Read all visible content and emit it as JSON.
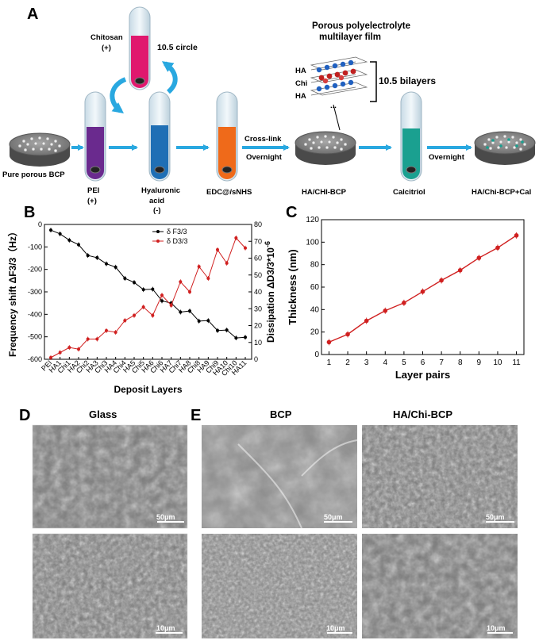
{
  "panel_a": {
    "letter": "A",
    "film_title_line1": "Porous polyelectrolyte",
    "film_title_line2": "multilayer film",
    "chitosan_label": "Chitosan",
    "chitosan_charge": "(+)",
    "circle_label": "10.5 circle",
    "layer_ha_top": "HA",
    "layer_chi": "Chi",
    "layer_ha_bottom": "HA",
    "layer_ellipsis": "...",
    "bilayers_label": "10.5 bilayers",
    "crosslink_label": "Cross-link",
    "overnight_label_1": "Overnight",
    "overnight_label_2": "Overnight",
    "pure_bcp_label": "Pure porous BCP",
    "pei_label": "PEI",
    "pei_charge": "(+)",
    "ha_label_line1": "Hyaluronic",
    "ha_label_line2": "acid",
    "ha_charge": "(-)",
    "edc_label": "EDC@/sNHS",
    "ha_chi_bcp_label": "HA/CHI-BCP",
    "calcitriol_label": "Calcitriol",
    "final_label": "HA/Chi-BCP+Cal",
    "colors": {
      "chitosan": "#e0186e",
      "pei": "#6a2a8e",
      "hyaluronic": "#1f6fb5",
      "edc": "#ef6a1a",
      "calcitriol": "#1aa090",
      "arrow": "#29a8e0"
    }
  },
  "panel_d": {
    "letter": "D",
    "title": "Glass",
    "scale_top": "50μm",
    "scale_bottom": "10μm"
  },
  "panel_e": {
    "letter": "E",
    "title_left": "BCP",
    "title_right": "HA/Chi-BCP",
    "scale_left_top": "50μm",
    "scale_right_top": "50μm",
    "scale_left_bottom": "10μm",
    "scale_right_bottom": "10μm"
  },
  "chart_data": [
    {
      "panel": "B",
      "type": "line",
      "xlabel": "Deposit Layers",
      "ylabel_left": "Frequency shift ΔF3/3（Hz）",
      "ylabel_right": "Dissipation ΔD3/3*10",
      "ylabel_right_exponent": "-6",
      "categories": [
        "PEI",
        "HA1",
        "Chi1",
        "HA2",
        "Chi2",
        "HA3",
        "Chi3",
        "HA4",
        "Chi4",
        "HA5",
        "Chi5",
        "HA6",
        "Chi6",
        "HA7",
        "Chi7",
        "HA8",
        "Chi8",
        "HA9",
        "Chi9",
        "HA10",
        "Chi10",
        "HA11"
      ],
      "yticks_left": [
        -600,
        -500,
        -400,
        -300,
        -200,
        -100,
        0
      ],
      "ylim_left": [
        -600,
        0
      ],
      "yticks_right": [
        0,
        10,
        20,
        30,
        40,
        50,
        60,
        70,
        80
      ],
      "ylim_right": [
        0,
        80
      ],
      "legend_position": "top-right",
      "series": [
        {
          "name": "δ F3/3",
          "axis": "left",
          "color": "#000000",
          "values": [
            -25,
            -42,
            -70,
            -90,
            -138,
            -148,
            -175,
            -190,
            -240,
            -258,
            -290,
            -288,
            -340,
            -350,
            -390,
            -385,
            -430,
            -428,
            -472,
            -470,
            -505,
            -502
          ]
        },
        {
          "name": "δ D3/3",
          "axis": "right",
          "color": "#d02020",
          "values": [
            1,
            4,
            7,
            6,
            12,
            12,
            17,
            16,
            23,
            26,
            31,
            26,
            38,
            32,
            46,
            40,
            55,
            48,
            65,
            57,
            72,
            66
          ]
        }
      ]
    },
    {
      "panel": "C",
      "type": "line",
      "xlabel": "Layer pairs",
      "ylabel": "Thickness (nm)",
      "x": [
        1,
        2,
        3,
        4,
        5,
        6,
        7,
        8,
        9,
        10,
        11
      ],
      "values": [
        11,
        18,
        30,
        39,
        46,
        56,
        66,
        75,
        86,
        95,
        106
      ],
      "xticks": [
        1,
        2,
        3,
        4,
        5,
        6,
        7,
        8,
        9,
        10,
        11
      ],
      "yticks": [
        0,
        20,
        40,
        60,
        80,
        100,
        120
      ],
      "ylim": [
        0,
        120
      ],
      "color": "#d02020"
    }
  ]
}
